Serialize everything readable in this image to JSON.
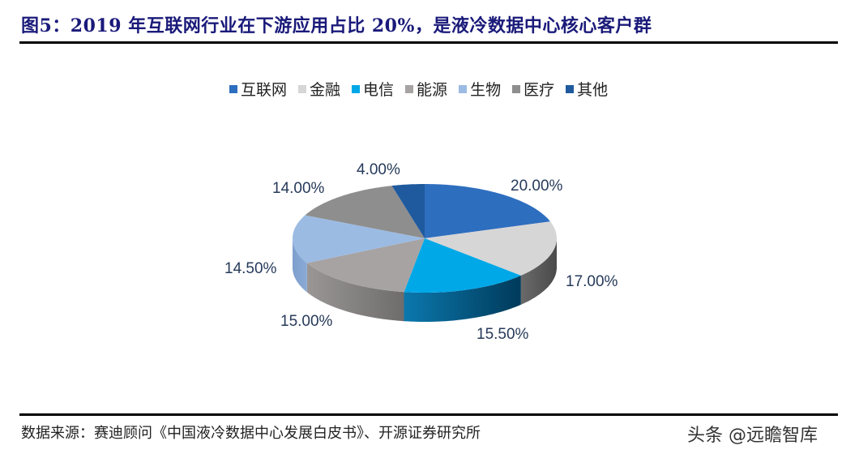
{
  "title": "图5：2019 年互联网行业在下游应用占比 20%，是液冷数据中心核心客户群",
  "legend": [
    {
      "label": "互联网",
      "color": "#2e6ebf"
    },
    {
      "label": "金融",
      "color": "#d6d6d6"
    },
    {
      "label": "电信",
      "color": "#00a8e8"
    },
    {
      "label": "能源",
      "color": "#a7a3a3"
    },
    {
      "label": "生物",
      "color": "#9bbbe3"
    },
    {
      "label": "医疗",
      "color": "#8e8e8e"
    },
    {
      "label": "其他",
      "color": "#1f5a9e"
    }
  ],
  "labels": {
    "l0": "20.00%",
    "l1": "17.00%",
    "l2": "15.50%",
    "l3": "15.00%",
    "l4": "14.50%",
    "l5": "14.00%",
    "l6": "4.00%"
  },
  "source": "数据来源：赛迪顾问《中国液冷数据中心发展白皮书》、开源证券研究所",
  "watermark": "头条 @远瞻智库",
  "chart_data": {
    "type": "pie",
    "title": "2019 年互联网行业在下游应用占比 20%，是液冷数据中心核心客户群",
    "categories": [
      "互联网",
      "金融",
      "电信",
      "能源",
      "生物",
      "医疗",
      "其他"
    ],
    "values": [
      20.0,
      17.0,
      15.5,
      15.0,
      14.5,
      14.0,
      4.0
    ],
    "unit": "%",
    "colors": [
      "#2e6ebf",
      "#d6d6d6",
      "#00a8e8",
      "#a7a3a3",
      "#9bbbe3",
      "#8e8e8e",
      "#1f5a9e"
    ],
    "legend_position": "top",
    "style": "3d",
    "start_angle": "12 o'clock",
    "direction": "clockwise"
  }
}
